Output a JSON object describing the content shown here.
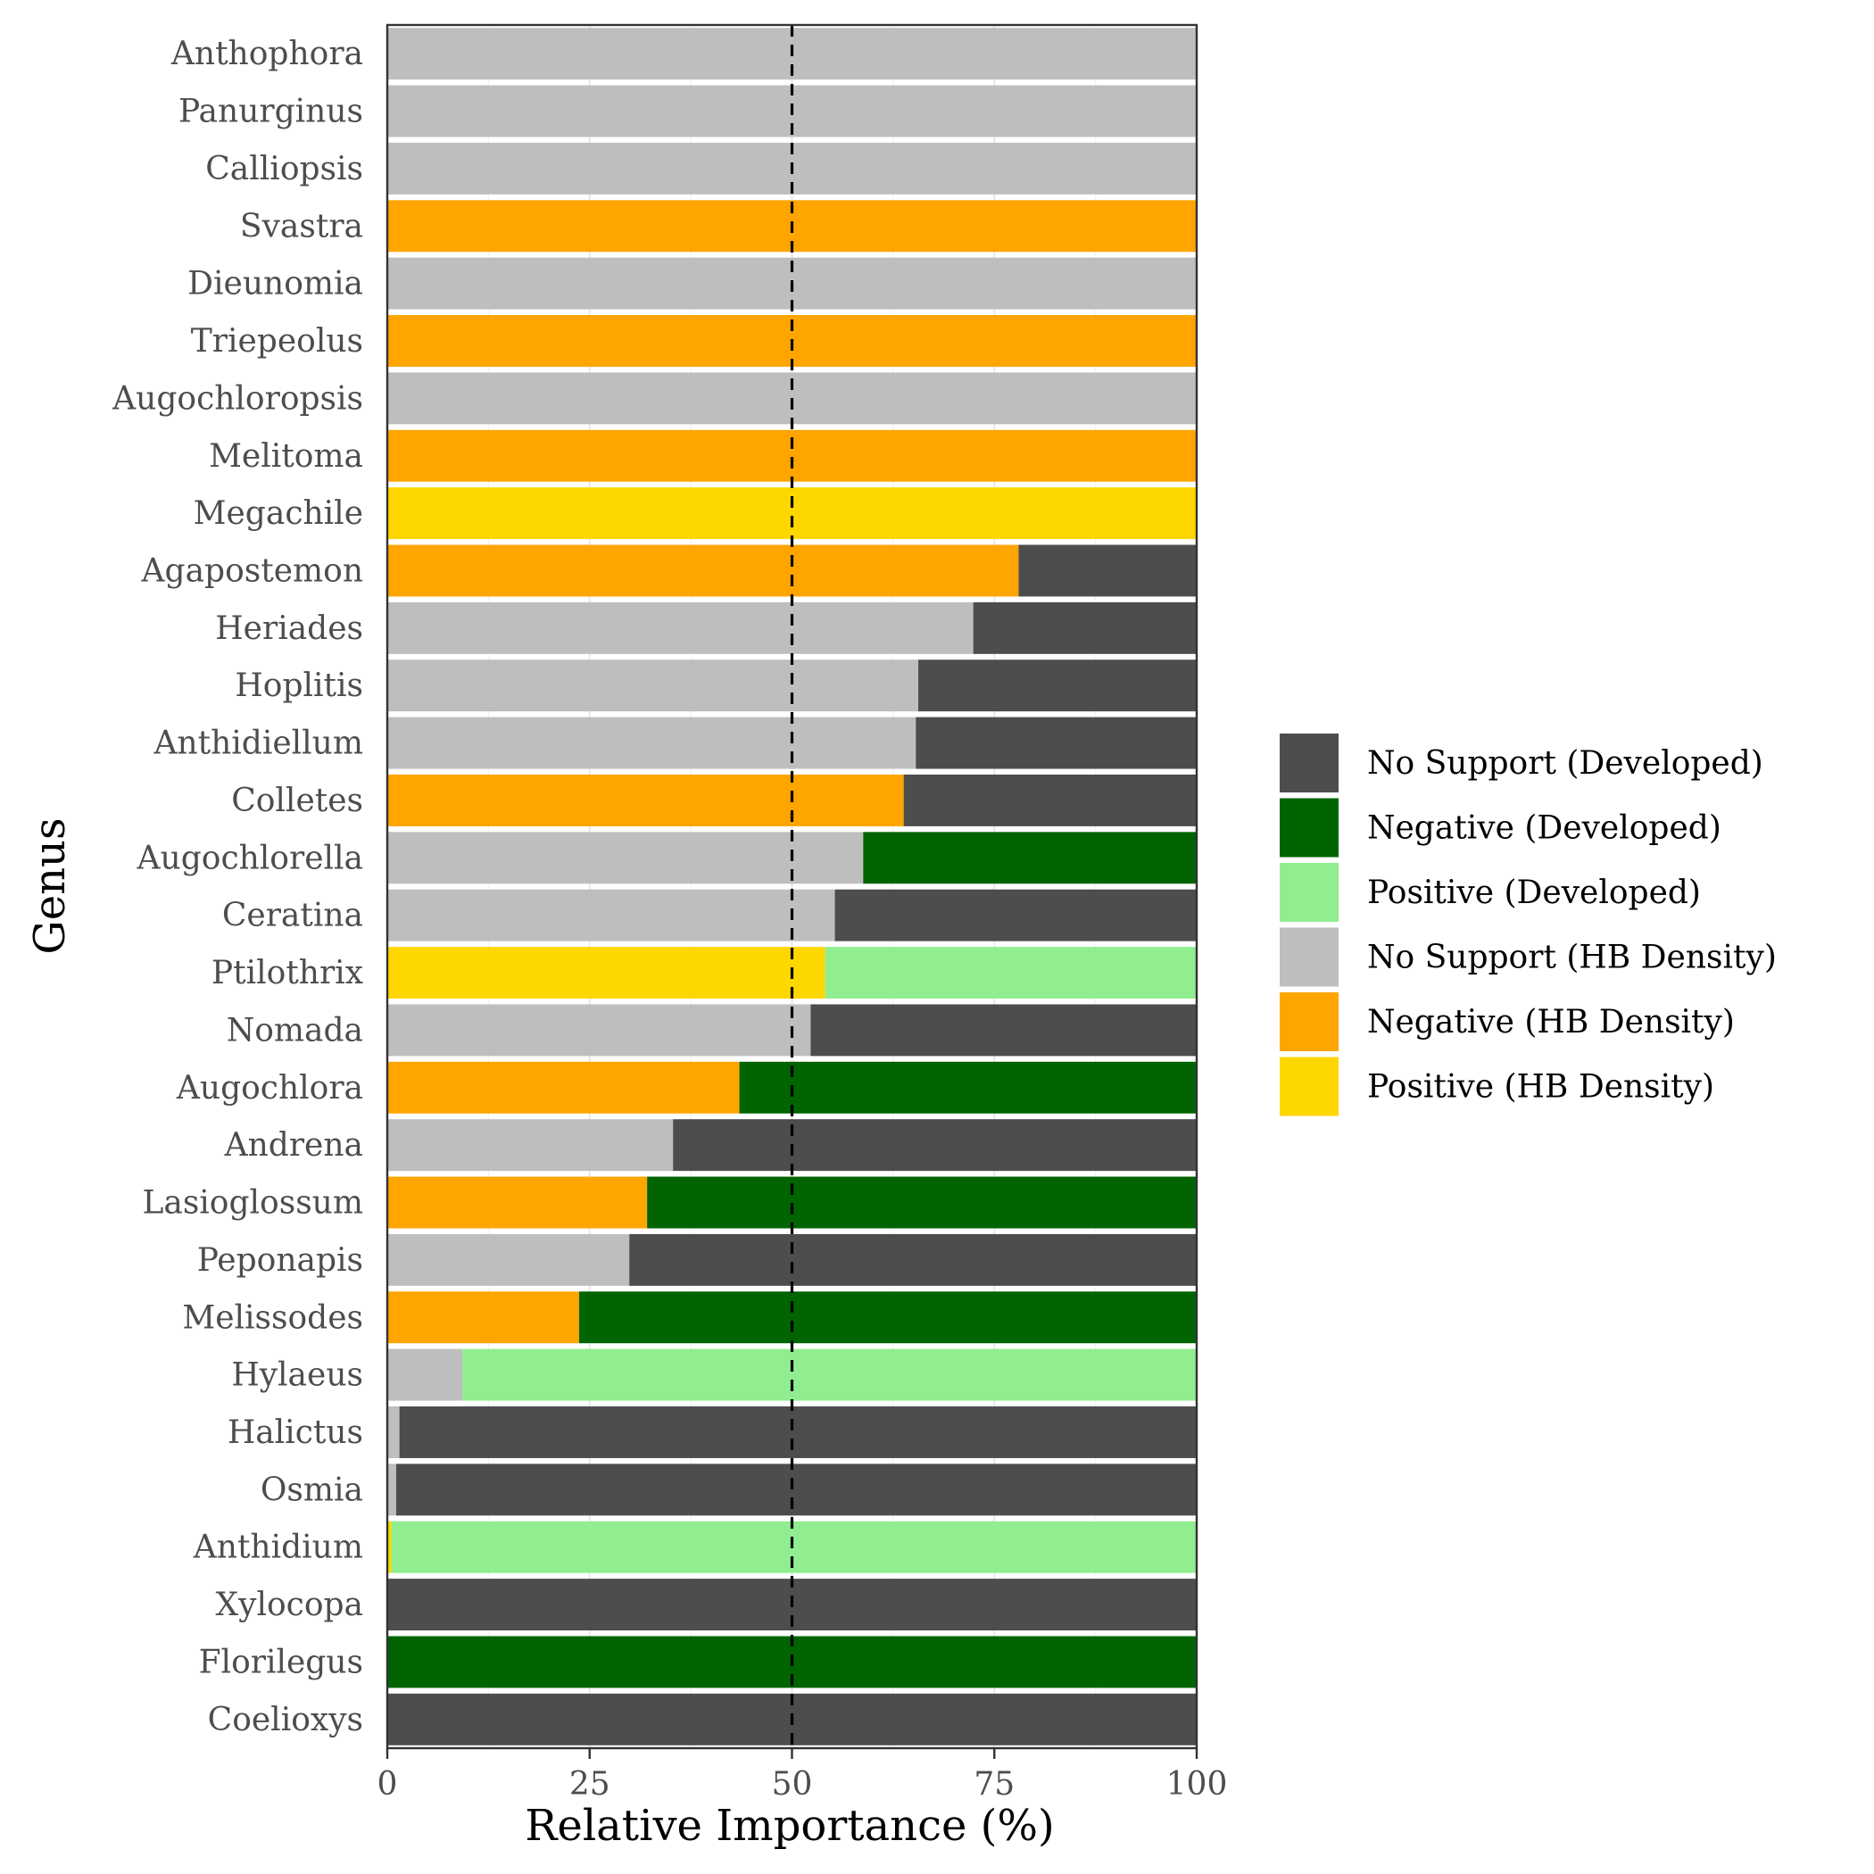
{
  "chart_data": {
    "type": "bar",
    "orientation": "horizontal",
    "stacked": true,
    "xlabel": "Relative Importance (%)",
    "ylabel": "Genus",
    "xlim": [
      0,
      100
    ],
    "x_ticks": [
      0,
      25,
      50,
      75,
      100
    ],
    "reference_line": {
      "x": 50,
      "style": "dashed"
    },
    "legend_position": "right",
    "grid": true,
    "categories": [
      "Anthophora",
      "Panurginus",
      "Calliopsis",
      "Svastra",
      "Dieunomia",
      "Triepeolus",
      "Augochloropsis",
      "Melitoma",
      "Megachile",
      "Agapostemon",
      "Heriades",
      "Hoplitis",
      "Anthidiellum",
      "Colletes",
      "Augochlorella",
      "Ceratina",
      "Ptilothrix",
      "Nomada",
      "Augochlora",
      "Andrena",
      "Lasioglossum",
      "Peponapis",
      "Melissodes",
      "Hylaeus",
      "Halictus",
      "Osmia",
      "Anthidium",
      "Xylocopa",
      "Florilegus",
      "Coelioxys"
    ],
    "legend": [
      {
        "label": "No Support (Developed)",
        "color": "#4d4d4d"
      },
      {
        "label": "Negative (Developed)",
        "color": "#006400"
      },
      {
        "label": "Positive (Developed)",
        "color": "#90ee90"
      },
      {
        "label": "No Support (HB Density)",
        "color": "#bebebe"
      },
      {
        "label": "Negative (HB Density)",
        "color": "#ffa500"
      },
      {
        "label": "Positive (HB Density)",
        "color": "#ffd700"
      }
    ],
    "bars": [
      {
        "genus": "Anthophora",
        "hb_value": 100,
        "hb_class": "No Support (HB Density)",
        "dev_value": 0,
        "dev_class": "No Support (Developed)"
      },
      {
        "genus": "Panurginus",
        "hb_value": 100,
        "hb_class": "No Support (HB Density)",
        "dev_value": 0,
        "dev_class": "No Support (Developed)"
      },
      {
        "genus": "Calliopsis",
        "hb_value": 100,
        "hb_class": "No Support (HB Density)",
        "dev_value": 0,
        "dev_class": "No Support (Developed)"
      },
      {
        "genus": "Svastra",
        "hb_value": 100,
        "hb_class": "Negative (HB Density)",
        "dev_value": 0,
        "dev_class": "No Support (Developed)"
      },
      {
        "genus": "Dieunomia",
        "hb_value": 100,
        "hb_class": "No Support (HB Density)",
        "dev_value": 0,
        "dev_class": "No Support (Developed)"
      },
      {
        "genus": "Triepeolus",
        "hb_value": 100,
        "hb_class": "Negative (HB Density)",
        "dev_value": 0,
        "dev_class": "No Support (Developed)"
      },
      {
        "genus": "Augochloropsis",
        "hb_value": 100,
        "hb_class": "No Support (HB Density)",
        "dev_value": 0,
        "dev_class": "No Support (Developed)"
      },
      {
        "genus": "Melitoma",
        "hb_value": 100,
        "hb_class": "Negative (HB Density)",
        "dev_value": 0,
        "dev_class": "No Support (Developed)"
      },
      {
        "genus": "Megachile",
        "hb_value": 100,
        "hb_class": "Positive (HB Density)",
        "dev_value": 0,
        "dev_class": "No Support (Developed)"
      },
      {
        "genus": "Agapostemon",
        "hb_value": 78,
        "hb_class": "Negative (HB Density)",
        "dev_value": 22,
        "dev_class": "No Support (Developed)"
      },
      {
        "genus": "Heriades",
        "hb_value": 72.4,
        "hb_class": "No Support (HB Density)",
        "dev_value": 27.6,
        "dev_class": "No Support (Developed)"
      },
      {
        "genus": "Hoplitis",
        "hb_value": 65.6,
        "hb_class": "No Support (HB Density)",
        "dev_value": 34.4,
        "dev_class": "No Support (Developed)"
      },
      {
        "genus": "Anthidiellum",
        "hb_value": 65.3,
        "hb_class": "No Support (HB Density)",
        "dev_value": 34.7,
        "dev_class": "No Support (Developed)"
      },
      {
        "genus": "Colletes",
        "hb_value": 63.8,
        "hb_class": "Negative (HB Density)",
        "dev_value": 36.2,
        "dev_class": "No Support (Developed)"
      },
      {
        "genus": "Augochlorella",
        "hb_value": 58.8,
        "hb_class": "No Support (HB Density)",
        "dev_value": 41.2,
        "dev_class": "Negative (Developed)"
      },
      {
        "genus": "Ceratina",
        "hb_value": 55.3,
        "hb_class": "No Support (HB Density)",
        "dev_value": 44.7,
        "dev_class": "No Support (Developed)"
      },
      {
        "genus": "Ptilothrix",
        "hb_value": 54.1,
        "hb_class": "Positive (HB Density)",
        "dev_value": 45.9,
        "dev_class": "Positive (Developed)"
      },
      {
        "genus": "Nomada",
        "hb_value": 52.3,
        "hb_class": "No Support (HB Density)",
        "dev_value": 47.7,
        "dev_class": "No Support (Developed)"
      },
      {
        "genus": "Augochlora",
        "hb_value": 43.5,
        "hb_class": "Negative (HB Density)",
        "dev_value": 56.5,
        "dev_class": "Negative (Developed)"
      },
      {
        "genus": "Andrena",
        "hb_value": 35.3,
        "hb_class": "No Support (HB Density)",
        "dev_value": 64.7,
        "dev_class": "No Support (Developed)"
      },
      {
        "genus": "Lasioglossum",
        "hb_value": 32.1,
        "hb_class": "Negative (HB Density)",
        "dev_value": 67.9,
        "dev_class": "Negative (Developed)"
      },
      {
        "genus": "Peponapis",
        "hb_value": 29.9,
        "hb_class": "No Support (HB Density)",
        "dev_value": 70.1,
        "dev_class": "No Support (Developed)"
      },
      {
        "genus": "Melissodes",
        "hb_value": 23.7,
        "hb_class": "Negative (HB Density)",
        "dev_value": 76.3,
        "dev_class": "Negative (Developed)"
      },
      {
        "genus": "Hylaeus",
        "hb_value": 9.3,
        "hb_class": "No Support (HB Density)",
        "dev_value": 90.7,
        "dev_class": "Positive (Developed)"
      },
      {
        "genus": "Halictus",
        "hb_value": 1.5,
        "hb_class": "No Support (HB Density)",
        "dev_value": 98.5,
        "dev_class": "No Support (Developed)"
      },
      {
        "genus": "Osmia",
        "hb_value": 1.1,
        "hb_class": "No Support (HB Density)",
        "dev_value": 98.9,
        "dev_class": "No Support (Developed)"
      },
      {
        "genus": "Anthidium",
        "hb_value": 0.5,
        "hb_class": "Positive (HB Density)",
        "dev_value": 99.5,
        "dev_class": "Positive (Developed)"
      },
      {
        "genus": "Xylocopa",
        "hb_value": 0,
        "hb_class": "No Support (HB Density)",
        "dev_value": 100,
        "dev_class": "No Support (Developed)"
      },
      {
        "genus": "Florilegus",
        "hb_value": 0,
        "hb_class": "No Support (HB Density)",
        "dev_value": 100,
        "dev_class": "Negative (Developed)"
      },
      {
        "genus": "Coelioxys",
        "hb_value": 0,
        "hb_class": "No Support (HB Density)",
        "dev_value": 100,
        "dev_class": "No Support (Developed)"
      }
    ]
  }
}
